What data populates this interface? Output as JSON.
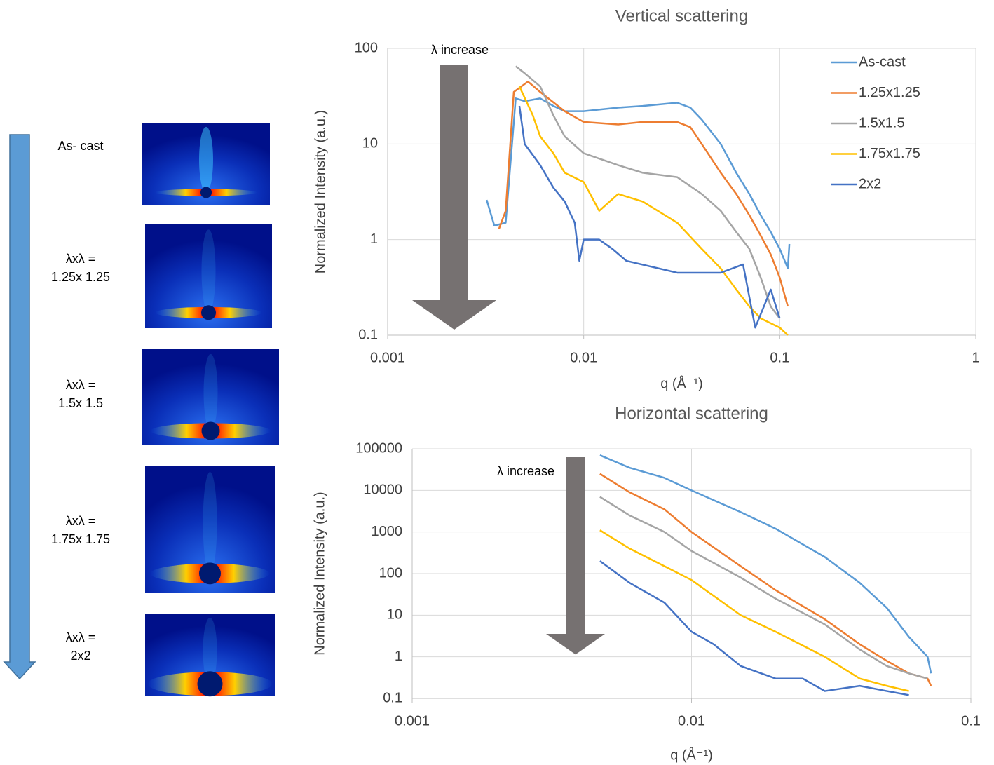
{
  "samples": [
    {
      "lines": [
        "As- cast"
      ]
    },
    {
      "lines": [
        "λxλ =",
        "1.25x 1.25"
      ]
    },
    {
      "lines": [
        "λxλ =",
        "1.5x 1.5"
      ]
    },
    {
      "lines": [
        "λxλ =",
        "1.75x 1.75"
      ]
    },
    {
      "lines": [
        "λxλ =",
        "2x2"
      ]
    }
  ],
  "chart_data": [
    {
      "type": "line",
      "title": "Vertical scattering",
      "x_label": "q (Å⁻¹)",
      "y_label": "Normalized Intensity (a.u.)",
      "annotation": "λ increase",
      "xscale": "log",
      "yscale": "log",
      "grid": true,
      "legend": "top-right",
      "xlim": [
        0.001,
        1
      ],
      "xticks": [
        0.001,
        0.01,
        0.1,
        1
      ],
      "ylim": [
        0.1,
        100
      ],
      "yticks": [
        0.1,
        1,
        10,
        100
      ],
      "series": [
        {
          "name": "As-cast",
          "color": "#5b9bd5",
          "x": [
            0.0032,
            0.0035,
            0.004,
            0.0045,
            0.005,
            0.006,
            0.007,
            0.008,
            0.01,
            0.015,
            0.02,
            0.03,
            0.035,
            0.04,
            0.05,
            0.06,
            0.07,
            0.08,
            0.09,
            0.1,
            0.11,
            0.112
          ],
          "values": [
            2.6,
            1.4,
            1.5,
            30,
            28,
            30,
            25,
            22,
            22,
            24,
            25,
            27,
            24,
            18,
            10,
            5,
            3,
            1.8,
            1.2,
            0.8,
            0.5,
            0.9
          ]
        },
        {
          "name": "1.25x1.25",
          "color": "#ed7d31",
          "x": [
            0.0037,
            0.004,
            0.0044,
            0.0052,
            0.006,
            0.008,
            0.01,
            0.015,
            0.02,
            0.03,
            0.035,
            0.04,
            0.05,
            0.06,
            0.07,
            0.08,
            0.09,
            0.1,
            0.11
          ],
          "values": [
            1.3,
            2,
            35,
            45,
            35,
            22,
            17,
            16,
            17,
            17,
            15,
            10,
            5,
            3,
            1.8,
            1.1,
            0.7,
            0.4,
            0.2
          ]
        },
        {
          "name": "1.5x1.5",
          "color": "#a5a5a5",
          "x": [
            0.0045,
            0.005,
            0.006,
            0.007,
            0.008,
            0.01,
            0.015,
            0.02,
            0.03,
            0.04,
            0.05,
            0.06,
            0.07,
            0.08,
            0.09,
            0.1
          ],
          "values": [
            65,
            55,
            40,
            20,
            12,
            8,
            6,
            5,
            4.5,
            3,
            2,
            1.2,
            0.8,
            0.4,
            0.2,
            0.15
          ]
        },
        {
          "name": "1.75x1.75",
          "color": "#ffc000",
          "x": [
            0.0047,
            0.0055,
            0.006,
            0.007,
            0.008,
            0.01,
            0.012,
            0.015,
            0.02,
            0.03,
            0.04,
            0.05,
            0.06,
            0.07,
            0.08,
            0.1,
            0.11
          ],
          "values": [
            40,
            20,
            12,
            8,
            5,
            4,
            2,
            3,
            2.5,
            1.5,
            0.8,
            0.5,
            0.3,
            0.2,
            0.15,
            0.12,
            0.1
          ]
        },
        {
          "name": "2x2",
          "color": "#4472c4",
          "x": [
            0.0047,
            0.005,
            0.006,
            0.007,
            0.008,
            0.009,
            0.0095,
            0.01,
            0.012,
            0.014,
            0.0165,
            0.03,
            0.05,
            0.065,
            0.075,
            0.09,
            0.1
          ],
          "values": [
            25,
            10,
            6,
            3.5,
            2.5,
            1.5,
            0.6,
            1,
            1,
            0.8,
            0.6,
            0.45,
            0.45,
            0.55,
            0.12,
            0.3,
            0.15
          ]
        }
      ]
    },
    {
      "type": "line",
      "title": "Horizontal scattering",
      "x_label": "q (Å⁻¹)",
      "y_label": "Normalized Intensity (a.u.)",
      "annotation": "λ increase",
      "xscale": "log",
      "yscale": "log",
      "grid": true,
      "xlim": [
        0.001,
        0.1
      ],
      "xticks": [
        0.001,
        0.01,
        0.1
      ],
      "ylim": [
        0.1,
        100000
      ],
      "yticks": [
        0.1,
        1,
        10,
        100,
        1000,
        10000,
        100000
      ],
      "series": [
        {
          "name": "As-cast",
          "color": "#5b9bd5",
          "x": [
            0.0047,
            0.006,
            0.008,
            0.01,
            0.015,
            0.02,
            0.03,
            0.04,
            0.05,
            0.06,
            0.07,
            0.072
          ],
          "values": [
            70000,
            35000,
            20000,
            10000,
            3000,
            1200,
            250,
            60,
            15,
            3,
            1,
            0.4
          ]
        },
        {
          "name": "1.25x1.25",
          "color": "#ed7d31",
          "x": [
            0.0047,
            0.006,
            0.008,
            0.01,
            0.015,
            0.02,
            0.03,
            0.04,
            0.05,
            0.06,
            0.07,
            0.072
          ],
          "values": [
            25000,
            9000,
            3500,
            1000,
            150,
            40,
            8,
            2,
            0.8,
            0.4,
            0.3,
            0.2
          ]
        },
        {
          "name": "1.5x1.5",
          "color": "#a5a5a5",
          "x": [
            0.0047,
            0.006,
            0.008,
            0.01,
            0.015,
            0.02,
            0.03,
            0.04,
            0.05,
            0.06,
            0.07
          ],
          "values": [
            7000,
            2500,
            1000,
            350,
            80,
            25,
            6,
            1.5,
            0.6,
            0.4,
            0.3
          ]
        },
        {
          "name": "1.75x1.75",
          "color": "#ffc000",
          "x": [
            0.0047,
            0.006,
            0.008,
            0.01,
            0.015,
            0.02,
            0.03,
            0.04,
            0.05,
            0.06
          ],
          "values": [
            1100,
            400,
            150,
            70,
            10,
            4,
            1,
            0.3,
            0.2,
            0.15
          ]
        },
        {
          "name": "2x2",
          "color": "#4472c4",
          "x": [
            0.0047,
            0.006,
            0.008,
            0.01,
            0.012,
            0.015,
            0.02,
            0.025,
            0.03,
            0.04,
            0.05,
            0.06
          ],
          "values": [
            200,
            60,
            20,
            4,
            2,
            0.6,
            0.3,
            0.3,
            0.15,
            0.2,
            0.15,
            0.12
          ]
        }
      ]
    }
  ]
}
